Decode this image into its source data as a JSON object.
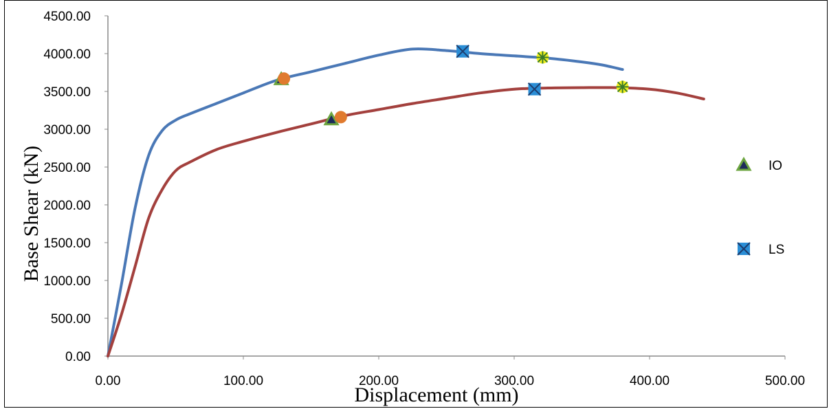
{
  "chart_data": {
    "type": "line",
    "title": "",
    "xlabel": "Displacement (mm)",
    "ylabel": "Base Shear (kN)",
    "xlim": [
      0,
      500
    ],
    "ylim": [
      0,
      4500
    ],
    "x_ticks": [
      "0.00",
      "100.00",
      "200.00",
      "300.00",
      "400.00",
      "500.00"
    ],
    "y_ticks": [
      "0.00",
      "500.00",
      "1000.00",
      "1500.00",
      "2000.00",
      "2500.00",
      "3000.00",
      "3500.00",
      "4000.00",
      "4500.00"
    ],
    "grid": false,
    "legend_position": "right",
    "series": [
      {
        "color": "#4a78b6",
        "x": [
          0,
          10,
          20,
          30,
          40,
          50,
          60,
          80,
          100,
          125,
          150,
          175,
          200,
          225,
          250,
          275,
          300,
          325,
          350,
          365,
          380
        ],
        "y": [
          0,
          950,
          1950,
          2650,
          2980,
          3120,
          3200,
          3340,
          3480,
          3650,
          3760,
          3870,
          3980,
          4060,
          4040,
          4000,
          3970,
          3940,
          3890,
          3850,
          3790
        ]
      },
      {
        "color": "#a3403d",
        "x": [
          0,
          10,
          20,
          30,
          40,
          50,
          60,
          80,
          100,
          125,
          150,
          175,
          200,
          225,
          250,
          275,
          300,
          325,
          350,
          375,
          400,
          420,
          440
        ],
        "y": [
          0,
          550,
          1180,
          1820,
          2200,
          2450,
          2560,
          2730,
          2840,
          2960,
          3070,
          3180,
          3260,
          3340,
          3410,
          3480,
          3530,
          3545,
          3550,
          3550,
          3530,
          3480,
          3400
        ]
      }
    ],
    "markers": [
      {
        "legend": "IO",
        "shape": "triangle",
        "color": "#6ca53f",
        "points": [
          [
            128,
            3660
          ],
          [
            165,
            3130
          ]
        ]
      },
      {
        "legend": "",
        "shape": "circle",
        "color": "#e07a2e",
        "points": [
          [
            130,
            3670
          ],
          [
            172,
            3160
          ]
        ]
      },
      {
        "legend": "LS",
        "shape": "square-x",
        "color": "#2a8ed6",
        "points": [
          [
            262,
            4030
          ],
          [
            315,
            3530
          ]
        ]
      },
      {
        "legend": "",
        "shape": "star",
        "color": "#f0f020",
        "points": [
          [
            321,
            3950
          ],
          [
            380,
            3560
          ]
        ]
      }
    ],
    "legend": [
      "IO",
      "LS"
    ]
  }
}
